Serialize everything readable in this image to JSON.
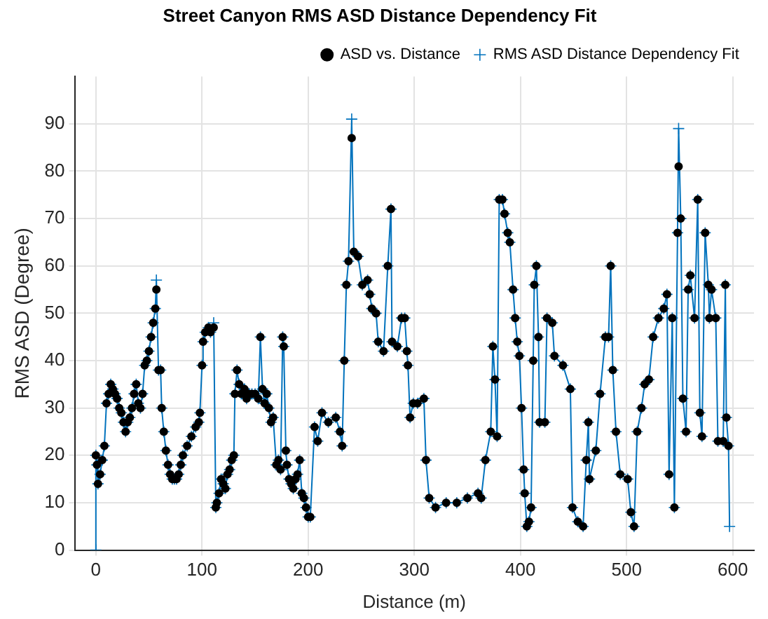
{
  "chart_data": {
    "type": "scatter",
    "title": "Street Canyon RMS ASD Distance Dependency Fit",
    "xlabel": "Distance (m)",
    "ylabel": "RMS ASD (Degree)",
    "xlim": [
      -20,
      620
    ],
    "xticks": [
      0,
      100,
      200,
      300,
      400,
      500,
      600
    ],
    "ylim": [
      0,
      100
    ],
    "yticks": [
      0,
      10,
      20,
      30,
      40,
      50,
      60,
      70,
      80,
      90
    ],
    "grid": true,
    "legend": "top right",
    "series": [
      {
        "name": "ASD vs. Distance",
        "type": "scatter",
        "marker": "circle",
        "color": "#000000",
        "x": [
          0,
          1,
          2,
          4,
          6,
          8,
          10,
          12,
          14,
          16,
          18,
          20,
          22,
          24,
          26,
          28,
          30,
          32,
          34,
          36,
          38,
          40,
          42,
          44,
          46,
          48,
          50,
          52,
          54,
          56,
          57,
          59,
          61,
          62,
          64,
          66,
          68,
          70,
          72,
          74,
          76,
          78,
          80,
          82,
          86,
          90,
          94,
          97,
          98,
          100,
          101,
          103,
          106,
          108,
          111,
          113,
          114,
          116,
          118,
          120,
          122,
          124,
          126,
          128,
          130,
          131,
          133,
          135,
          137,
          140,
          142,
          144,
          147,
          150,
          153,
          155,
          157,
          159,
          161,
          163,
          165,
          167,
          170,
          172,
          174,
          176,
          177,
          179,
          180,
          182,
          184,
          186,
          188,
          190,
          192,
          194,
          196,
          198,
          200,
          202,
          206,
          209,
          213,
          219,
          226,
          230,
          232,
          234,
          236,
          238,
          241,
          243,
          247,
          251,
          256,
          258,
          260,
          264,
          266,
          271,
          275,
          278,
          279,
          284,
          288,
          291,
          293,
          294,
          296,
          299,
          303,
          309,
          311,
          314,
          320,
          330,
          340,
          350,
          360,
          363,
          367,
          372,
          374,
          376,
          378,
          380,
          383,
          385,
          388,
          390,
          393,
          395,
          397,
          399,
          401,
          403,
          404,
          406,
          408,
          410,
          412,
          413,
          415,
          417,
          418,
          423,
          425,
          430,
          432,
          440,
          447,
          449,
          454,
          459,
          462,
          464,
          465,
          471,
          475,
          480,
          483,
          485,
          487,
          490,
          494,
          501,
          504,
          507,
          510,
          514,
          517,
          521,
          525,
          530,
          535,
          538,
          540,
          543,
          545,
          548,
          549,
          551,
          553,
          556,
          558,
          560,
          564,
          567,
          569,
          571,
          574,
          577,
          578,
          580,
          584,
          586,
          591,
          593,
          594,
          596
        ],
        "values": [
          20,
          18,
          14,
          16,
          19,
          22,
          31,
          33,
          35,
          34,
          33,
          32,
          30,
          29,
          27,
          25,
          27,
          28,
          30,
          33,
          35,
          31,
          30,
          33,
          39,
          40,
          42,
          45,
          48,
          51,
          55,
          38,
          38,
          30,
          25,
          21,
          18,
          16,
          15,
          15,
          15,
          16,
          18,
          20,
          22,
          24,
          26,
          27,
          29,
          39,
          44,
          46,
          47,
          46,
          47,
          9,
          10,
          12,
          15,
          14,
          13,
          16,
          17,
          19,
          20,
          33,
          38,
          35,
          33,
          34,
          32,
          33,
          33,
          33,
          32,
          45,
          34,
          31,
          33,
          30,
          27,
          28,
          18,
          19,
          17,
          45,
          43,
          21,
          18,
          15,
          14,
          13,
          15,
          16,
          19,
          12,
          11,
          9,
          7,
          7,
          26,
          23,
          29,
          27,
          28,
          25,
          22,
          40,
          56,
          61,
          87,
          63,
          62,
          56,
          57,
          54,
          51,
          50,
          44,
          42,
          60,
          72,
          44,
          43,
          49,
          49,
          42,
          39,
          28,
          31,
          31,
          32,
          19,
          11,
          9,
          10,
          10,
          11,
          12,
          11,
          19,
          25,
          43,
          36,
          24,
          74,
          74,
          71,
          67,
          65,
          55,
          49,
          44,
          41,
          30,
          17,
          12,
          5,
          6,
          9,
          40,
          56,
          60,
          45,
          27,
          27,
          49,
          48,
          41,
          39,
          34,
          9,
          6,
          5,
          19,
          27,
          15,
          21,
          33,
          45,
          45,
          60,
          38,
          25,
          16,
          15,
          8,
          5,
          25,
          30,
          35,
          36,
          45,
          49,
          51,
          54,
          16,
          49,
          9,
          67,
          81,
          70,
          32,
          25,
          55,
          58,
          49,
          74,
          29,
          24,
          67,
          56,
          49,
          55,
          49,
          23,
          23,
          56,
          28,
          22
        ]
      },
      {
        "name": "RMS ASD Distance Dependency Fit",
        "type": "line",
        "marker": "cross",
        "color": "#0072bd",
        "x": [
          0,
          0,
          1,
          2,
          4,
          6,
          8,
          10,
          12,
          14,
          16,
          18,
          20,
          22,
          24,
          26,
          28,
          30,
          32,
          34,
          36,
          38,
          40,
          42,
          44,
          46,
          48,
          50,
          52,
          54,
          56,
          57,
          59,
          61,
          62,
          64,
          66,
          68,
          70,
          72,
          74,
          76,
          78,
          80,
          82,
          86,
          90,
          94,
          97,
          98,
          100,
          101,
          103,
          106,
          108,
          111,
          113,
          114,
          116,
          118,
          120,
          122,
          124,
          126,
          128,
          130,
          131,
          133,
          135,
          137,
          140,
          142,
          144,
          147,
          150,
          153,
          155,
          157,
          159,
          161,
          163,
          165,
          167,
          170,
          172,
          174,
          176,
          177,
          179,
          180,
          182,
          184,
          186,
          188,
          190,
          192,
          194,
          196,
          198,
          200,
          202,
          206,
          209,
          213,
          219,
          226,
          230,
          232,
          234,
          236,
          238,
          241,
          243,
          247,
          251,
          256,
          258,
          260,
          264,
          266,
          271,
          275,
          278,
          279,
          284,
          288,
          291,
          293,
          294,
          296,
          299,
          303,
          309,
          311,
          314,
          320,
          330,
          340,
          350,
          360,
          363,
          367,
          372,
          374,
          376,
          378,
          380,
          383,
          385,
          388,
          390,
          393,
          395,
          397,
          399,
          401,
          403,
          404,
          406,
          408,
          410,
          412,
          413,
          415,
          417,
          418,
          423,
          425,
          430,
          432,
          440,
          447,
          449,
          454,
          459,
          462,
          464,
          465,
          471,
          475,
          480,
          483,
          485,
          487,
          490,
          494,
          501,
          504,
          507,
          510,
          514,
          517,
          521,
          525,
          530,
          535,
          538,
          540,
          543,
          545,
          548,
          549,
          551,
          553,
          556,
          558,
          560,
          564,
          567,
          569,
          571,
          574,
          577,
          578,
          580,
          584,
          586,
          591,
          593,
          594,
          596,
          597
        ],
        "values": [
          0,
          20,
          18,
          14,
          16,
          19,
          22,
          31,
          33,
          35,
          34,
          33,
          32,
          30,
          29,
          27,
          25,
          27,
          28,
          30,
          33,
          35,
          31,
          30,
          33,
          39,
          40,
          42,
          45,
          48,
          51,
          57,
          38,
          38,
          30,
          25,
          21,
          18,
          16,
          15,
          15,
          15,
          16,
          18,
          20,
          22,
          24,
          26,
          27,
          29,
          39,
          44,
          46,
          47,
          46,
          48,
          9,
          10,
          12,
          15,
          14,
          13,
          16,
          17,
          19,
          20,
          33,
          38,
          35,
          33,
          34,
          32,
          33,
          33,
          33,
          32,
          45,
          34,
          31,
          33,
          30,
          27,
          28,
          18,
          19,
          17,
          45,
          43,
          21,
          18,
          15,
          14,
          13,
          15,
          16,
          19,
          12,
          11,
          9,
          7,
          7,
          26,
          23,
          29,
          27,
          28,
          25,
          22,
          40,
          56,
          61,
          91,
          63,
          62,
          56,
          57,
          54,
          51,
          50,
          44,
          42,
          60,
          72,
          44,
          43,
          49,
          49,
          42,
          39,
          28,
          31,
          31,
          32,
          19,
          11,
          9,
          10,
          10,
          11,
          12,
          11,
          19,
          25,
          43,
          36,
          24,
          74,
          74,
          71,
          67,
          65,
          55,
          49,
          44,
          41,
          30,
          17,
          12,
          5,
          6,
          9,
          40,
          56,
          60,
          45,
          27,
          27,
          49,
          48,
          41,
          39,
          34,
          9,
          6,
          5,
          19,
          27,
          15,
          21,
          33,
          45,
          45,
          60,
          38,
          25,
          16,
          15,
          8,
          5,
          25,
          30,
          35,
          36,
          45,
          49,
          51,
          54,
          16,
          49,
          9,
          67,
          89,
          70,
          32,
          25,
          55,
          58,
          49,
          74,
          29,
          24,
          67,
          56,
          49,
          55,
          49,
          23,
          23,
          56,
          28,
          22,
          5
        ]
      }
    ]
  }
}
